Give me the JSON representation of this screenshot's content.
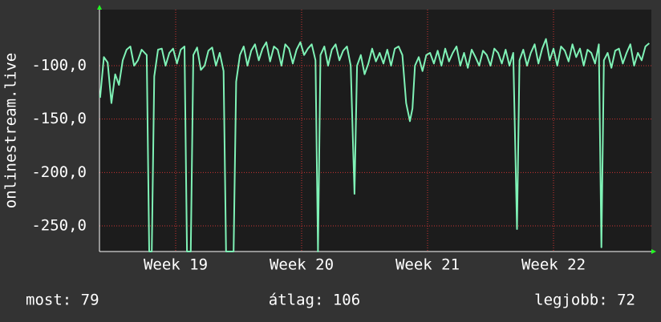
{
  "chart_data": {
    "type": "line",
    "ylabel": "onlinestream.live",
    "xlim": [
      18.395,
      22.777
    ],
    "xticks": [
      {
        "value": 19,
        "label": "Week 19"
      },
      {
        "value": 20,
        "label": "Week 20"
      },
      {
        "value": 21,
        "label": "Week 21"
      },
      {
        "value": 22,
        "label": "Week 22"
      }
    ],
    "ylim": [
      -274,
      -47.5
    ],
    "yticks": [
      {
        "value": -250,
        "label": "-250,0"
      },
      {
        "value": -200,
        "label": "-200,0"
      },
      {
        "value": -150,
        "label": "-150,0"
      },
      {
        "value": -100,
        "label": "-100,0"
      }
    ],
    "grid": true,
    "x": [
      18.4,
      18.43,
      18.46,
      18.49,
      18.52,
      18.55,
      18.58,
      18.61,
      18.64,
      18.67,
      18.7,
      18.73,
      18.77,
      18.79,
      18.81,
      18.83,
      18.86,
      18.89,
      18.92,
      18.95,
      18.98,
      19.01,
      19.04,
      19.07,
      19.09,
      19.12,
      19.14,
      19.17,
      19.2,
      19.23,
      19.26,
      19.29,
      19.32,
      19.35,
      19.38,
      19.4,
      19.46,
      19.48,
      19.51,
      19.54,
      19.57,
      19.6,
      19.63,
      19.66,
      19.69,
      19.72,
      19.75,
      19.78,
      19.81,
      19.84,
      19.87,
      19.9,
      19.93,
      19.96,
      19.99,
      20.02,
      20.05,
      20.08,
      20.11,
      20.13,
      20.15,
      20.18,
      20.21,
      20.24,
      20.27,
      20.3,
      20.33,
      20.36,
      20.39,
      20.42,
      20.44,
      20.47,
      20.5,
      20.53,
      20.56,
      20.59,
      20.62,
      20.65,
      20.68,
      20.71,
      20.74,
      20.77,
      20.8,
      20.83,
      20.86,
      20.88,
      20.9,
      20.93,
      20.96,
      20.99,
      21.02,
      21.05,
      21.08,
      21.11,
      21.14,
      21.17,
      21.2,
      21.23,
      21.26,
      21.29,
      21.32,
      21.35,
      21.38,
      21.41,
      21.44,
      21.47,
      21.5,
      21.53,
      21.56,
      21.59,
      21.62,
      21.65,
      21.68,
      21.71,
      21.73,
      21.76,
      21.79,
      21.82,
      21.85,
      21.88,
      21.91,
      21.94,
      21.97,
      22.0,
      22.03,
      22.06,
      22.09,
      22.12,
      22.15,
      22.18,
      22.21,
      22.24,
      22.27,
      22.3,
      22.33,
      22.36,
      22.38,
      22.4,
      22.43,
      22.46,
      22.49,
      22.52,
      22.55,
      22.58,
      22.61,
      22.64,
      22.67,
      22.7,
      22.73,
      22.76
    ],
    "series": [
      {
        "color": "#7ff2b6",
        "values": [
          -130,
          -92,
          -97,
          -135,
          -108,
          -118,
          -95,
          -85,
          -82,
          -100,
          -95,
          -85,
          -90,
          -274,
          -274,
          -110,
          -85,
          -84,
          -100,
          -88,
          -84,
          -98,
          -85,
          -82,
          -274,
          -274,
          -90,
          -83,
          -104,
          -100,
          -86,
          -83,
          -100,
          -88,
          -105,
          -274,
          -274,
          -115,
          -90,
          -82,
          -100,
          -86,
          -80,
          -95,
          -84,
          -78,
          -96,
          -82,
          -85,
          -100,
          -80,
          -84,
          -98,
          -85,
          -78,
          -90,
          -84,
          -80,
          -95,
          -274,
          -90,
          -82,
          -100,
          -85,
          -80,
          -95,
          -86,
          -82,
          -100,
          -220,
          -100,
          -90,
          -108,
          -98,
          -84,
          -96,
          -88,
          -98,
          -85,
          -100,
          -84,
          -82,
          -90,
          -135,
          -152,
          -140,
          -100,
          -92,
          -105,
          -90,
          -88,
          -98,
          -86,
          -100,
          -84,
          -96,
          -88,
          -82,
          -100,
          -88,
          -102,
          -85,
          -92,
          -100,
          -86,
          -90,
          -100,
          -84,
          -88,
          -98,
          -85,
          -100,
          -88,
          -253,
          -95,
          -85,
          -100,
          -88,
          -80,
          -98,
          -84,
          -75,
          -95,
          -84,
          -100,
          -82,
          -86,
          -96,
          -80,
          -92,
          -84,
          -100,
          -85,
          -88,
          -98,
          -80,
          -270,
          -95,
          -88,
          -102,
          -86,
          -84,
          -98,
          -88,
          -80,
          -100,
          -88,
          -95,
          -82,
          -79
        ]
      }
    ],
    "footer": [
      "most: 79",
      "átlag: 106",
      "legjobb: 72"
    ]
  }
}
